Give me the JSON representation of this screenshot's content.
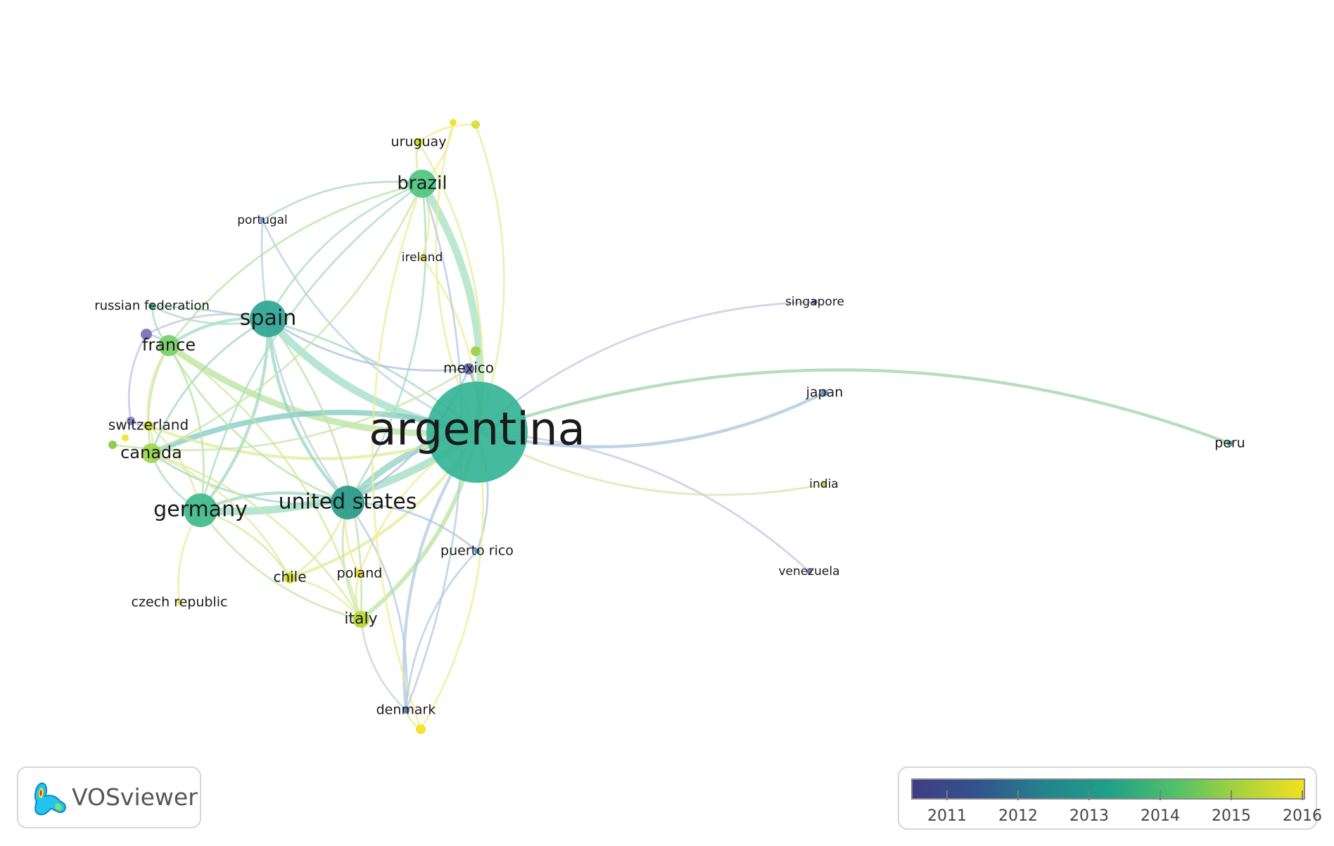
{
  "nodes": [
    {
      "id": "argentina",
      "label": "argentina",
      "color": "#32b294",
      "weight": 5
    },
    {
      "id": "spain",
      "label": "spain",
      "color": "#34a897",
      "weight": 3
    },
    {
      "id": "united_states",
      "label": "united states",
      "color": "#2e9c8c",
      "weight": 3
    },
    {
      "id": "germany",
      "label": "germany",
      "color": "#45bb8e",
      "weight": 3
    },
    {
      "id": "brazil",
      "label": "brazil",
      "color": "#52c684",
      "weight": 2
    },
    {
      "id": "france",
      "label": "france",
      "color": "#7ad06a",
      "weight": 2
    },
    {
      "id": "canada",
      "label": "canada",
      "color": "#9fd552",
      "weight": 2
    },
    {
      "id": "italy",
      "label": "italy",
      "color": "#b9d83a",
      "weight": 2
    },
    {
      "id": "switzerland",
      "label": "switzerland",
      "color": "#c9d93a",
      "weight": 1
    },
    {
      "id": "mexico",
      "label": "mexico",
      "color": "#6a70b0",
      "weight": 1
    },
    {
      "id": "chile",
      "label": "chile",
      "color": "#d2dc2c",
      "weight": 1
    },
    {
      "id": "uruguay",
      "label": "uruguay",
      "color": "#cfdc2f",
      "weight": 1
    },
    {
      "id": "portugal",
      "label": "portugal",
      "color": "#6f9fcf",
      "weight": 1
    },
    {
      "id": "ireland",
      "label": "ireland",
      "color": "#e6e03a",
      "weight": 1
    },
    {
      "id": "russian_federation",
      "label": "russian federation",
      "color": "#3fb685",
      "weight": 1
    },
    {
      "id": "poland",
      "label": "poland",
      "color": "#e8dd27",
      "weight": 1
    },
    {
      "id": "czech_republic",
      "label": "czech republic",
      "color": "#e9e24a",
      "weight": 1
    },
    {
      "id": "puerto_rico",
      "label": "puerto rico",
      "color": "#4c93c3",
      "weight": 1
    },
    {
      "id": "denmark",
      "label": "denmark",
      "color": "#4b83b8",
      "weight": 1
    },
    {
      "id": "singapore",
      "label": "singapore",
      "color": "#7a74b8",
      "weight": 1
    },
    {
      "id": "japan",
      "label": "japan",
      "color": "#5a8ec6",
      "weight": 1
    },
    {
      "id": "india",
      "label": "india",
      "color": "#b7d84a",
      "weight": 1
    },
    {
      "id": "venezuela",
      "label": "venezuela",
      "color": "#7c73bb",
      "weight": 1
    },
    {
      "id": "peru",
      "label": "peru",
      "color": "#3c9b90",
      "weight": 1
    },
    {
      "id": "unlabeled_a",
      "label": "",
      "color": "#f0e22c",
      "weight": 1
    },
    {
      "id": "unlabeled_b",
      "label": "",
      "color": "#d9dd3a",
      "weight": 1
    },
    {
      "id": "unlabeled_c",
      "label": "",
      "color": "#9fd04a",
      "weight": 1
    },
    {
      "id": "unlabeled_d",
      "label": "",
      "color": "#7e73b9",
      "weight": 1
    },
    {
      "id": "unlabeled_e",
      "label": "",
      "color": "#8084c4",
      "weight": 1
    },
    {
      "id": "unlabeled_f",
      "label": "",
      "color": "#88cc4a",
      "weight": 1
    },
    {
      "id": "unlabeled_g",
      "label": "",
      "color": "#f1e430",
      "weight": 1
    },
    {
      "id": "unlabeled_h",
      "label": "",
      "color": "#f2e12a",
      "weight": 1
    }
  ],
  "links": [
    {
      "source": "argentina",
      "target": "spain",
      "strength": 6,
      "color": "#9fdcc8"
    },
    {
      "source": "argentina",
      "target": "brazil",
      "strength": 6,
      "color": "#a6e0c0"
    },
    {
      "source": "argentina",
      "target": "germany",
      "strength": 6,
      "color": "#9edcc2"
    },
    {
      "source": "argentina",
      "target": "united_states",
      "strength": 5,
      "color": "#8fd2c0"
    },
    {
      "source": "argentina",
      "target": "france",
      "strength": 5,
      "color": "#b8e3a0"
    },
    {
      "source": "argentina",
      "target": "canada",
      "strength": 4,
      "color": "#7dc8c0"
    },
    {
      "source": "argentina",
      "target": "italy",
      "strength": 3,
      "color": "#b9e39e"
    },
    {
      "source": "argentina",
      "target": "mexico",
      "strength": 2,
      "color": "#9db2d8"
    },
    {
      "source": "argentina",
      "target": "peru",
      "strength": 2,
      "color": "#9ed3a8"
    },
    {
      "source": "argentina",
      "target": "japan",
      "strength": 2,
      "color": "#a9c6de"
    },
    {
      "source": "argentina",
      "target": "singapore",
      "strength": 1,
      "color": "#c6c4e4"
    },
    {
      "source": "argentina",
      "target": "india",
      "strength": 1,
      "color": "#cfe8a8"
    },
    {
      "source": "argentina",
      "target": "venezuela",
      "strength": 1,
      "color": "#c6c4e4"
    },
    {
      "source": "argentina",
      "target": "denmark",
      "strength": 2,
      "color": "#b2cbe2"
    },
    {
      "source": "argentina",
      "target": "puerto_rico",
      "strength": 1,
      "color": "#a9c6de"
    },
    {
      "source": "argentina",
      "target": "uruguay",
      "strength": 1,
      "color": "#e4ec9c"
    },
    {
      "source": "argentina",
      "target": "chile",
      "strength": 2,
      "color": "#e2ec98"
    },
    {
      "source": "argentina",
      "target": "poland",
      "strength": 1,
      "color": "#eeec9a"
    },
    {
      "source": "argentina",
      "target": "switzerland",
      "strength": 2,
      "color": "#e3eb9a"
    },
    {
      "source": "argentina",
      "target": "ireland",
      "strength": 1,
      "color": "#eeec9a"
    },
    {
      "source": "argentina",
      "target": "portugal",
      "strength": 1,
      "color": "#b9cfe4"
    },
    {
      "source": "argentina",
      "target": "russian_federation",
      "strength": 1,
      "color": "#9fd8c0"
    },
    {
      "source": "argentina",
      "target": "unlabeled_a",
      "strength": 1,
      "color": "#eeec9a"
    },
    {
      "source": "argentina",
      "target": "unlabeled_b",
      "strength": 1,
      "color": "#e6ec9c"
    },
    {
      "source": "argentina",
      "target": "unlabeled_h",
      "strength": 1,
      "color": "#eeec9a"
    },
    {
      "source": "spain",
      "target": "france",
      "strength": 2,
      "color": "#a4dcc0"
    },
    {
      "source": "spain",
      "target": "germany",
      "strength": 2,
      "color": "#9fd8c0"
    },
    {
      "source": "spain",
      "target": "united_states",
      "strength": 2,
      "color": "#99d4c2"
    },
    {
      "source": "spain",
      "target": "brazil",
      "strength": 1,
      "color": "#a9dec2"
    },
    {
      "source": "spain",
      "target": "canada",
      "strength": 1,
      "color": "#a0d6c4"
    },
    {
      "source": "spain",
      "target": "italy",
      "strength": 1,
      "color": "#c0e2a8"
    },
    {
      "source": "spain",
      "target": "mexico",
      "strength": 1,
      "color": "#a9bee0"
    },
    {
      "source": "spain",
      "target": "russian_federation",
      "strength": 1,
      "color": "#a8dcc0"
    },
    {
      "source": "spain",
      "target": "unlabeled_d",
      "strength": 1,
      "color": "#c4c0e4"
    },
    {
      "source": "germany",
      "target": "united_states",
      "strength": 2,
      "color": "#9fd8c0"
    },
    {
      "source": "germany",
      "target": "france",
      "strength": 1,
      "color": "#b9e3a2"
    },
    {
      "source": "germany",
      "target": "canada",
      "strength": 1,
      "color": "#a8dcbc"
    },
    {
      "source": "germany",
      "target": "italy",
      "strength": 1,
      "color": "#c6e6a6"
    },
    {
      "source": "germany",
      "target": "chile",
      "strength": 1,
      "color": "#d6e99c"
    },
    {
      "source": "germany",
      "target": "czech_republic",
      "strength": 1,
      "color": "#eeec9a"
    },
    {
      "source": "germany",
      "target": "brazil",
      "strength": 1,
      "color": "#a8dec0"
    },
    {
      "source": "germany",
      "target": "switzerland",
      "strength": 1,
      "color": "#e0eaa0"
    },
    {
      "source": "united_states",
      "target": "canada",
      "strength": 1,
      "color": "#a0d6c4"
    },
    {
      "source": "united_states",
      "target": "italy",
      "strength": 1,
      "color": "#c0e2a8"
    },
    {
      "source": "united_states",
      "target": "denmark",
      "strength": 1,
      "color": "#b2cbe2"
    },
    {
      "source": "united_states",
      "target": "brazil",
      "strength": 1,
      "color": "#a6dcc0"
    },
    {
      "source": "united_states",
      "target": "france",
      "strength": 1,
      "color": "#b9e3a2"
    },
    {
      "source": "united_states",
      "target": "poland",
      "strength": 1,
      "color": "#eeec9a"
    },
    {
      "source": "united_states",
      "target": "chile",
      "strength": 1,
      "color": "#dfe99a"
    },
    {
      "source": "united_states",
      "target": "mexico",
      "strength": 1,
      "color": "#a9bee0"
    },
    {
      "source": "united_states",
      "target": "puerto_rico",
      "strength": 1,
      "color": "#aac7dd"
    },
    {
      "source": "brazil",
      "target": "france",
      "strength": 1,
      "color": "#b8e3a0"
    },
    {
      "source": "brazil",
      "target": "uruguay",
      "strength": 1,
      "color": "#dfeb9a"
    },
    {
      "source": "brazil",
      "target": "portugal",
      "strength": 1,
      "color": "#b0d6c8"
    },
    {
      "source": "brazil",
      "target": "ireland",
      "strength": 1,
      "color": "#e8ec9a"
    },
    {
      "source": "brazil",
      "target": "unlabeled_a",
      "strength": 1,
      "color": "#eeec9a"
    },
    {
      "source": "brazil",
      "target": "canada",
      "strength": 1,
      "color": "#c6e6a6"
    },
    {
      "source": "brazil",
      "target": "unlabeled_h",
      "strength": 1,
      "color": "#eeec9a"
    },
    {
      "source": "brazil",
      "target": "denmark",
      "strength": 1,
      "color": "#b2cbe2"
    },
    {
      "source": "france",
      "target": "canada",
      "strength": 1,
      "color": "#c6e6a6"
    },
    {
      "source": "france",
      "target": "italy",
      "strength": 1,
      "color": "#d0e8a0"
    },
    {
      "source": "france",
      "target": "switzerland",
      "strength": 1,
      "color": "#dfe9a0"
    },
    {
      "source": "france",
      "target": "russian_federation",
      "strength": 1,
      "color": "#a8dcc0"
    },
    {
      "source": "france",
      "target": "unlabeled_d",
      "strength": 1,
      "color": "#c4c0e4"
    },
    {
      "source": "canada",
      "target": "italy",
      "strength": 1,
      "color": "#d6e99c"
    },
    {
      "source": "canada",
      "target": "switzerland",
      "strength": 1,
      "color": "#e0eaa0"
    },
    {
      "source": "canada",
      "target": "chile",
      "strength": 1,
      "color": "#e3ea9c"
    },
    {
      "source": "italy",
      "target": "denmark",
      "strength": 1,
      "color": "#c4d4e0"
    },
    {
      "source": "italy",
      "target": "poland",
      "strength": 1,
      "color": "#ebec9a"
    },
    {
      "source": "italy",
      "target": "chile",
      "strength": 1,
      "color": "#e6ec9a"
    },
    {
      "source": "denmark",
      "target": "puerto_rico",
      "strength": 1,
      "color": "#b2cbe2"
    },
    {
      "source": "denmark",
      "target": "unlabeled_h",
      "strength": 1,
      "color": "#eeec9a"
    },
    {
      "source": "uruguay",
      "target": "unlabeled_b",
      "strength": 1,
      "color": "#eeec9a"
    },
    {
      "source": "portugal",
      "target": "united_states",
      "strength": 1,
      "color": "#b9cfe4"
    },
    {
      "source": "switzerland",
      "target": "unlabeled_e",
      "strength": 1,
      "color": "#c4c0e4"
    },
    {
      "source": "unlabeled_d",
      "target": "unlabeled_e",
      "strength": 1,
      "color": "#c4c0e4"
    },
    {
      "source": "mexico",
      "target": "unlabeled_f",
      "strength": 1,
      "color": "#c6e6a6"
    }
  ],
  "logo": {
    "text": "VOSviewer"
  },
  "legend": {
    "labels": [
      "2011",
      "2012",
      "2013",
      "2014",
      "2015",
      "2016"
    ],
    "colors": [
      "#3f3d86",
      "#33538c",
      "#25828c",
      "#1fa088",
      "#4fc06a",
      "#a6d33c",
      "#f2e01e"
    ]
  }
}
